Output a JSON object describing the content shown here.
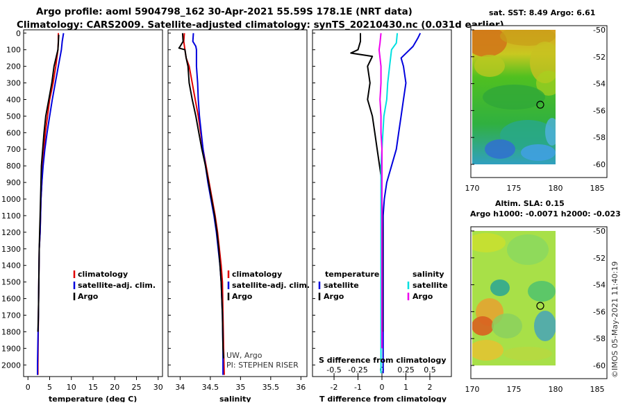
{
  "header": {
    "line1": "Argo profile: aoml 5904798_162 30-Apr-2021 55.59S 178.1E (NRT data)",
    "line2": "Climatology: CARS2009. Satellite-adjusted climatology: synTS_20210430.nc (0.031d earlier)"
  },
  "depth_ticks": [
    "0",
    "100",
    "200",
    "300",
    "400",
    "500",
    "600",
    "700",
    "800",
    "900",
    "1000",
    "1100",
    "1200",
    "1300",
    "1400",
    "1500",
    "1600",
    "1700",
    "1800",
    "1900",
    "2000"
  ],
  "colors": {
    "climatology": "#e00000",
    "satellite": "#0000dd",
    "argo": "#000000",
    "satellite_s": "#00e0e0",
    "argo_s": "#ee00ee"
  },
  "legend": {
    "climatology": "climatology",
    "satellite": "satellite-adj. clim.",
    "argo": "Argo"
  },
  "credit": {
    "line1": "UW, Argo",
    "line2": "PI: STEPHEN RISER"
  },
  "chart_data": [
    {
      "type": "line",
      "name": "temperature",
      "xlabel": "temperature (deg C)",
      "ylabel": "depth",
      "xlim": [
        -1,
        31
      ],
      "ylim": [
        2070,
        -20
      ],
      "xticks": [
        "0",
        "5",
        "10",
        "15",
        "20",
        "25",
        "30"
      ],
      "xtick_values": [
        0,
        5,
        10,
        15,
        20,
        25,
        30
      ],
      "series": [
        {
          "name": "climatology",
          "color_key": "climatology",
          "points": [
            [
              7.0,
              0
            ],
            [
              7.0,
              50
            ],
            [
              6.9,
              100
            ],
            [
              6.4,
              200
            ],
            [
              5.8,
              300
            ],
            [
              5.0,
              400
            ],
            [
              4.5,
              500
            ],
            [
              4.0,
              600
            ],
            [
              3.7,
              700
            ],
            [
              3.4,
              800
            ],
            [
              3.2,
              900
            ],
            [
              3.0,
              1000
            ],
            [
              2.9,
              1100
            ],
            [
              2.8,
              1200
            ],
            [
              2.6,
              1300
            ],
            [
              2.5,
              1500
            ],
            [
              2.4,
              1700
            ],
            [
              2.3,
              2000
            ],
            [
              2.3,
              2060
            ]
          ]
        },
        {
          "name": "satellite-adj. clim.",
          "color_key": "satellite",
          "points": [
            [
              8.2,
              0
            ],
            [
              7.9,
              50
            ],
            [
              7.7,
              100
            ],
            [
              7.0,
              200
            ],
            [
              6.3,
              300
            ],
            [
              5.6,
              400
            ],
            [
              5.0,
              500
            ],
            [
              4.4,
              600
            ],
            [
              3.9,
              700
            ],
            [
              3.5,
              800
            ],
            [
              3.2,
              900
            ],
            [
              3.0,
              1000
            ],
            [
              2.9,
              1100
            ],
            [
              2.8,
              1200
            ],
            [
              2.6,
              1300
            ],
            [
              2.5,
              1500
            ],
            [
              2.4,
              1700
            ],
            [
              2.2,
              2000
            ],
            [
              2.2,
              2060
            ]
          ]
        },
        {
          "name": "Argo",
          "color_key": "argo",
          "points": [
            [
              7.1,
              10
            ],
            [
              7.0,
              60
            ],
            [
              6.9,
              100
            ],
            [
              6.0,
              200
            ],
            [
              5.5,
              300
            ],
            [
              4.8,
              400
            ],
            [
              4.1,
              500
            ],
            [
              3.7,
              600
            ],
            [
              3.4,
              700
            ],
            [
              3.1,
              800
            ],
            [
              3.0,
              900
            ],
            [
              2.9,
              1000
            ],
            [
              2.8,
              1100
            ],
            [
              2.7,
              1200
            ],
            [
              2.6,
              1300
            ],
            [
              2.5,
              1500
            ],
            [
              2.4,
              1700
            ],
            [
              2.3,
              1800
            ]
          ]
        }
      ]
    },
    {
      "type": "line",
      "name": "salinity",
      "xlabel": "salinity",
      "ylabel": "depth",
      "xlim": [
        33.8,
        36.1
      ],
      "ylim": [
        2070,
        -20
      ],
      "xticks": [
        "34",
        "34.5",
        "35",
        "35.5",
        "36"
      ],
      "xtick_values": [
        34,
        34.5,
        35,
        35.5,
        36
      ],
      "series": [
        {
          "name": "climatology",
          "color_key": "climatology",
          "points": [
            [
              34.07,
              0
            ],
            [
              34.06,
              50
            ],
            [
              34.08,
              100
            ],
            [
              34.1,
              150
            ],
            [
              34.15,
              200
            ],
            [
              34.2,
              300
            ],
            [
              34.25,
              400
            ],
            [
              34.3,
              500
            ],
            [
              34.34,
              600
            ],
            [
              34.38,
              700
            ],
            [
              34.43,
              800
            ],
            [
              34.48,
              900
            ],
            [
              34.53,
              1000
            ],
            [
              34.58,
              1100
            ],
            [
              34.62,
              1200
            ],
            [
              34.65,
              1300
            ],
            [
              34.68,
              1400
            ],
            [
              34.7,
              1500
            ],
            [
              34.71,
              1700
            ],
            [
              34.72,
              1900
            ],
            [
              34.73,
              2060
            ]
          ]
        },
        {
          "name": "satellite-adj. clim.",
          "color_key": "satellite",
          "points": [
            [
              34.22,
              0
            ],
            [
              34.21,
              50
            ],
            [
              34.26,
              80
            ],
            [
              34.27,
              100
            ],
            [
              34.27,
              200
            ],
            [
              34.29,
              300
            ],
            [
              34.3,
              400
            ],
            [
              34.32,
              500
            ],
            [
              34.35,
              600
            ],
            [
              34.38,
              700
            ],
            [
              34.42,
              800
            ],
            [
              34.46,
              900
            ],
            [
              34.51,
              1000
            ],
            [
              34.56,
              1100
            ],
            [
              34.6,
              1200
            ],
            [
              34.63,
              1300
            ],
            [
              34.66,
              1400
            ],
            [
              34.68,
              1500
            ],
            [
              34.7,
              1700
            ],
            [
              34.71,
              1900
            ],
            [
              34.71,
              2060
            ]
          ]
        },
        {
          "name": "Argo",
          "color_key": "argo",
          "points": [
            [
              34.04,
              0
            ],
            [
              34.05,
              50
            ],
            [
              34.0,
              80
            ],
            [
              33.98,
              90
            ],
            [
              34.08,
              100
            ],
            [
              34.1,
              150
            ],
            [
              34.13,
              200
            ],
            [
              34.15,
              300
            ],
            [
              34.2,
              400
            ],
            [
              34.26,
              500
            ],
            [
              34.31,
              600
            ],
            [
              34.36,
              700
            ],
            [
              34.42,
              800
            ],
            [
              34.47,
              900
            ],
            [
              34.52,
              1000
            ],
            [
              34.57,
              1100
            ],
            [
              34.61,
              1200
            ],
            [
              34.64,
              1300
            ],
            [
              34.66,
              1400
            ],
            [
              34.68,
              1500
            ],
            [
              34.7,
              1700
            ],
            [
              34.71,
              1900
            ],
            [
              34.72,
              1960
            ]
          ]
        }
      ]
    },
    {
      "type": "line",
      "name": "difference",
      "xlabel": "T difference from climatology",
      "secondary_label": "S difference from climatology",
      "ylabel": "depth",
      "xlim": [
        -2.9,
        2.9
      ],
      "ylim": [
        2070,
        -20
      ],
      "xticks": [
        "-2",
        "-1",
        "0",
        "1",
        "2"
      ],
      "xtick_values": [
        -2,
        -1,
        0,
        1,
        2
      ],
      "sticks": [
        "-0.5",
        "-0.25",
        "0",
        "0.25",
        "0.5"
      ],
      "stick_values": [
        -0.5,
        -0.25,
        0,
        0.25,
        0.5
      ],
      "s_scale": 4,
      "legend": {
        "temperature": "temperature",
        "salinity": "salinity",
        "satellite": "satellite",
        "argo": "Argo"
      },
      "series": [
        {
          "name": "temperature satellite",
          "color_key": "satellite",
          "points": [
            [
              1.6,
              0
            ],
            [
              1.5,
              30
            ],
            [
              1.3,
              80
            ],
            [
              0.8,
              150
            ],
            [
              0.9,
              200
            ],
            [
              1.0,
              300
            ],
            [
              0.9,
              400
            ],
            [
              0.8,
              500
            ],
            [
              0.7,
              600
            ],
            [
              0.6,
              700
            ],
            [
              0.4,
              800
            ],
            [
              0.2,
              900
            ],
            [
              0.1,
              1000
            ],
            [
              0.05,
              1100
            ],
            [
              0.05,
              1200
            ],
            [
              0.05,
              1300
            ],
            [
              0.05,
              1500
            ],
            [
              0.05,
              1700
            ],
            [
              0.05,
              2000
            ],
            [
              0.05,
              2050
            ]
          ]
        },
        {
          "name": "temperature Argo",
          "color_key": "argo",
          "points": [
            [
              -0.9,
              0
            ],
            [
              -0.9,
              50
            ],
            [
              -1.0,
              100
            ],
            [
              -1.3,
              120
            ],
            [
              -0.4,
              140
            ],
            [
              -0.6,
              200
            ],
            [
              -0.5,
              300
            ],
            [
              -0.6,
              400
            ],
            [
              -0.4,
              500
            ],
            [
              -0.3,
              600
            ],
            [
              -0.2,
              700
            ],
            [
              -0.1,
              800
            ],
            [
              0.0,
              900
            ],
            [
              0.0,
              1000
            ],
            [
              0.02,
              1200
            ],
            [
              0.02,
              1500
            ],
            [
              0.02,
              1700
            ],
            [
              0.02,
              1800
            ]
          ]
        },
        {
          "name": "salinity satellite",
          "color_key": "satellite_s",
          "points": [
            [
              0.16,
              0
            ],
            [
              0.15,
              60
            ],
            [
              0.1,
              100
            ],
            [
              0.08,
              200
            ],
            [
              0.06,
              300
            ],
            [
              0.05,
              400
            ],
            [
              0.02,
              500
            ],
            [
              0.0,
              700
            ],
            [
              -0.01,
              800
            ],
            [
              -0.01,
              900
            ],
            [
              -0.01,
              1000
            ],
            [
              -0.01,
              1200
            ],
            [
              -0.01,
              1400
            ],
            [
              -0.01,
              1600
            ],
            [
              -0.01,
              1800
            ],
            [
              -0.01,
              2000
            ],
            [
              -0.01,
              2050
            ]
          ]
        },
        {
          "name": "salinity Argo",
          "color_key": "argo_s",
          "points": [
            [
              -0.01,
              0
            ],
            [
              -0.02,
              60
            ],
            [
              -0.03,
              100
            ],
            [
              -0.01,
              200
            ],
            [
              -0.01,
              300
            ],
            [
              -0.02,
              400
            ],
            [
              -0.01,
              500
            ],
            [
              -0.01,
              600
            ],
            [
              0.0,
              700
            ],
            [
              0.0,
              800
            ],
            [
              0.0,
              1000
            ],
            [
              0.0,
              1400
            ],
            [
              0.0,
              1700
            ],
            [
              0.0,
              1900
            ]
          ]
        }
      ]
    }
  ],
  "maps": [
    {
      "name": "sst",
      "title": "sat. SST: 8.49 Argo: 6.61",
      "lat_ticks": [
        "-50",
        "-52",
        "-54",
        "-56",
        "-58",
        "-60"
      ],
      "lat_values": [
        -50,
        -52,
        -54,
        -56,
        -58,
        -60
      ],
      "lon_ticks": [
        "170",
        "175",
        "180",
        "185"
      ],
      "lon_values": [
        170,
        175,
        180,
        185
      ],
      "float_position": {
        "lon": 178.1,
        "lat": -55.59
      }
    },
    {
      "name": "sla",
      "title_line1": "Altim. SLA: 0.15",
      "title_line2": "Argo h1000: -0.0071 h2000: -0.023",
      "lat_ticks": [
        "-50",
        "-52",
        "-54",
        "-56",
        "-58",
        "-60"
      ],
      "lat_values": [
        -50,
        -52,
        -54,
        -56,
        -58,
        -60
      ],
      "lon_ticks": [
        "170",
        "175",
        "180",
        "185"
      ],
      "lon_values": [
        170,
        175,
        180,
        185
      ],
      "float_position": {
        "lon": 178.1,
        "lat": -55.59
      }
    }
  ],
  "watermark": "©IMOS 05-May-2021 11:40:19"
}
